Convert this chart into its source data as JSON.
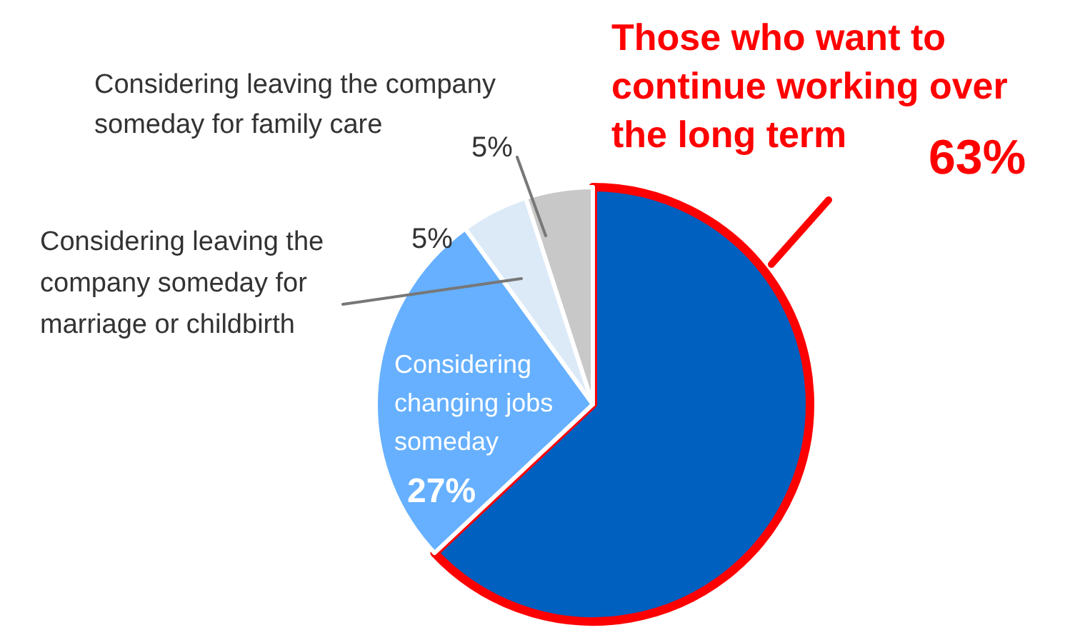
{
  "chart_data": {
    "type": "pie",
    "categories": [
      "Those who want to continue working over the long term",
      "Considering changing jobs someday",
      "Considering leaving the company someday for marriage or childbirth",
      "Considering leaving the company someday for family care"
    ],
    "values": [
      63,
      27,
      5,
      5
    ],
    "colors": [
      "#0060c0",
      "#66b0ff",
      "#dceaf8",
      "#c8c8c8"
    ],
    "value_labels": [
      "63%",
      "27%",
      "5%",
      "5%"
    ],
    "legend": false
  }
}
